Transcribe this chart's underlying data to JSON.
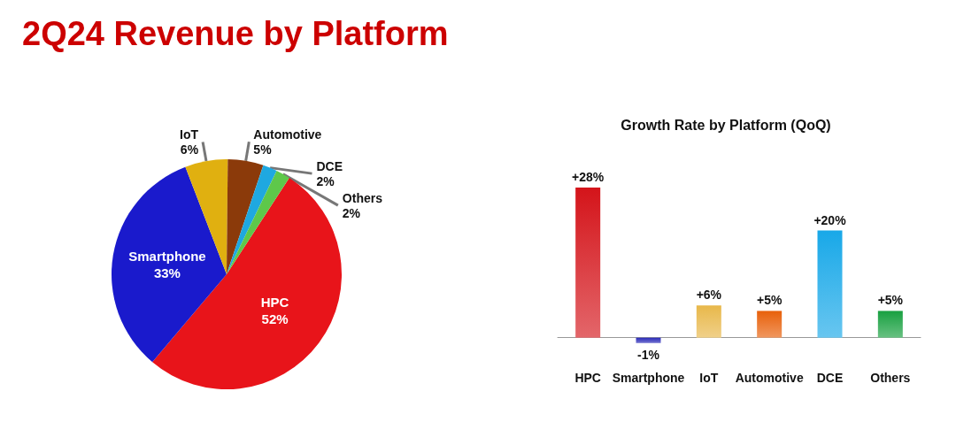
{
  "chart_data": [
    {
      "type": "pie",
      "title": "2Q24 Revenue by Platform",
      "categories": [
        "HPC",
        "Smartphone",
        "IoT",
        "Automotive",
        "DCE",
        "Others"
      ],
      "values": [
        52,
        33,
        6,
        5,
        2,
        2
      ],
      "colors": [
        "#e8141a",
        "#1a1acc",
        "#e0b010",
        "#8b3a0a",
        "#1fa8e0",
        "#5ec84a"
      ],
      "value_labels": [
        "52%",
        "33%",
        "6%",
        "5%",
        "2%",
        "2%"
      ],
      "legend": false
    },
    {
      "type": "bar",
      "title": "Growth Rate by Platform (QoQ)",
      "categories": [
        "HPC",
        "Smartphone",
        "IoT",
        "Automotive",
        "DCE",
        "Others"
      ],
      "values": [
        28,
        -1,
        6,
        5,
        20,
        5
      ],
      "colors": [
        "#d4141a",
        "#2a2ab8",
        "#e8b84a",
        "#e8600a",
        "#18a8e8",
        "#18a040"
      ],
      "value_labels": [
        "+28%",
        "-1%",
        "+6%",
        "+5%",
        "+20%",
        "+5%"
      ],
      "legend": false,
      "grid": false
    }
  ]
}
